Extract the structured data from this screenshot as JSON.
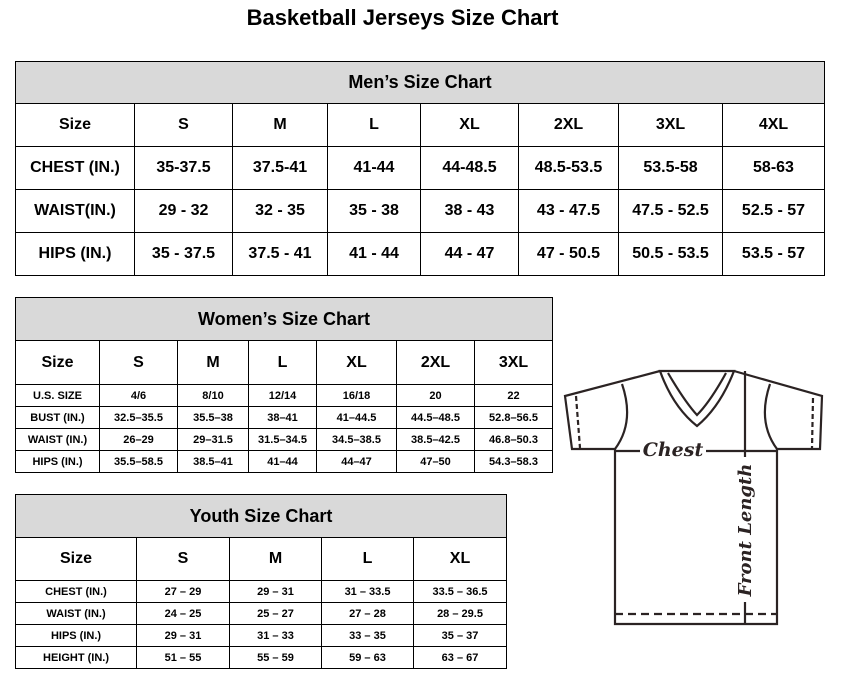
{
  "title": "Basketball Jerseys Size Chart",
  "men": {
    "heading": "Men’s Size Chart",
    "header": [
      "Size",
      "S",
      "M",
      "L",
      "XL",
      "2XL",
      "3XL",
      "4XL"
    ],
    "rows": [
      [
        "CHEST (IN.)",
        "35-37.5",
        "37.5-41",
        "41-44",
        "44-48.5",
        "48.5-53.5",
        "53.5-58",
        "58-63"
      ],
      [
        "WAIST(IN.)",
        "29 - 32",
        "32 - 35",
        "35 - 38",
        "38 - 43",
        "43 - 47.5",
        "47.5 - 52.5",
        "52.5 - 57"
      ],
      [
        "HIPS (IN.)",
        "35 - 37.5",
        "37.5 - 41",
        "41 - 44",
        "44 - 47",
        "47 - 50.5",
        "50.5 - 53.5",
        "53.5 - 57"
      ]
    ]
  },
  "women": {
    "heading": "Women’s Size Chart",
    "header": [
      "Size",
      "S",
      "M",
      "L",
      "XL",
      "2XL",
      "3XL"
    ],
    "rows": [
      [
        "U.S. SIZE",
        "4/6",
        "8/10",
        "12/14",
        "16/18",
        "20",
        "22"
      ],
      [
        "BUST (IN.)",
        "32.5–35.5",
        "35.5–38",
        "38–41",
        "41–44.5",
        "44.5–48.5",
        "52.8–56.5"
      ],
      [
        "WAIST (IN.)",
        "26–29",
        "29–31.5",
        "31.5–34.5",
        "34.5–38.5",
        "38.5–42.5",
        "46.8–50.3"
      ],
      [
        "HIPS (IN.)",
        "35.5–58.5",
        "38.5–41",
        "41–44",
        "44–47",
        "47–50",
        "54.3–58.3"
      ]
    ]
  },
  "youth": {
    "heading": "Youth Size Chart",
    "header": [
      "Size",
      "S",
      "M",
      "L",
      "XL"
    ],
    "rows": [
      [
        "CHEST (IN.)",
        "27 – 29",
        "29 – 31",
        "31 – 33.5",
        "33.5 – 36.5"
      ],
      [
        "WAIST (IN.)",
        "24 – 25",
        "25 – 27",
        "27 – 28",
        "28 – 29.5"
      ],
      [
        "HIPS (IN.)",
        "29 – 31",
        "31 – 33",
        "33 – 35",
        "35 – 37"
      ],
      [
        "HEIGHT (IN.)",
        "51 – 55",
        "55 – 59",
        "59 – 63",
        "63 – 67"
      ]
    ]
  },
  "diagram": {
    "chest_label": "Chest",
    "length_label": "Front Length"
  },
  "colors": {
    "header_bg": "#d9d9d9",
    "diagram_line": "#2b2323"
  }
}
